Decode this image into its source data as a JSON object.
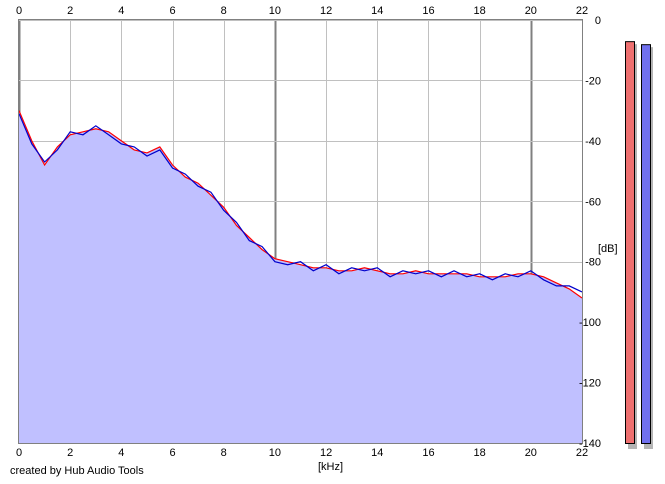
{
  "credit": "created by Hub Audio Tools",
  "colors": {
    "plot_background": "#ffffff",
    "grid": "#c0c0c0",
    "grid_major": "#808080",
    "fill": "#c0c0ff",
    "left_channel": "#ff0000",
    "right_channel": "#0000cc",
    "meter_left": "#ee7070",
    "meter_right": "#7070ee",
    "meter_shadow": "#b4b4b4"
  },
  "chart_data": {
    "type": "line",
    "title": "",
    "xlabel": "[kHz]",
    "ylabel": "[dB]",
    "xlim": [
      0,
      22
    ],
    "ylim": [
      -140,
      0
    ],
    "x_ticks": [
      "0",
      "2",
      "4",
      "6",
      "8",
      "10",
      "12",
      "14",
      "16",
      "18",
      "20",
      "22"
    ],
    "y_ticks": [
      "0",
      "-20",
      "-40",
      "-60",
      "-80",
      "-100",
      "-120",
      "-140"
    ],
    "grid": true,
    "x": [
      0,
      0.5,
      1,
      1.5,
      2,
      2.5,
      3,
      3.5,
      4,
      4.5,
      5,
      5.5,
      6,
      6.5,
      7,
      7.5,
      8,
      8.5,
      9,
      9.5,
      10,
      10.5,
      11,
      11.5,
      12,
      12.5,
      13,
      13.5,
      14,
      14.5,
      15,
      15.5,
      16,
      16.5,
      17,
      17.5,
      18,
      18.5,
      19,
      19.5,
      20,
      20.5,
      21,
      21.5,
      22
    ],
    "series": [
      {
        "values": [
          -30,
          -40,
          -48,
          -42,
          -38,
          -37,
          -36,
          -37,
          -40,
          -43,
          -44,
          -42,
          -48,
          -52,
          -54,
          -58,
          -62,
          -68,
          -72,
          -76,
          -79,
          -80,
          -81,
          -82,
          -82,
          -83,
          -83,
          -82,
          -83,
          -84,
          -84,
          -83,
          -84,
          -84,
          -84,
          -84,
          -85,
          -85,
          -85,
          -84,
          -84,
          -85,
          -87,
          -89,
          -92
        ]
      },
      {
        "values": [
          -31,
          -41,
          -47,
          -43,
          -37,
          -38,
          -35,
          -38,
          -41,
          -42,
          -45,
          -43,
          -49,
          -51,
          -55,
          -57,
          -63,
          -67,
          -73,
          -75,
          -80,
          -81,
          -80,
          -83,
          -81,
          -84,
          -82,
          -83,
          -82,
          -85,
          -83,
          -84,
          -83,
          -85,
          -83,
          -85,
          -84,
          -86,
          -84,
          -85,
          -83,
          -86,
          -88,
          -88,
          -90
        ]
      }
    ],
    "level_meters": [
      {
        "level_db": -7
      },
      {
        "level_db": -8
      }
    ]
  }
}
